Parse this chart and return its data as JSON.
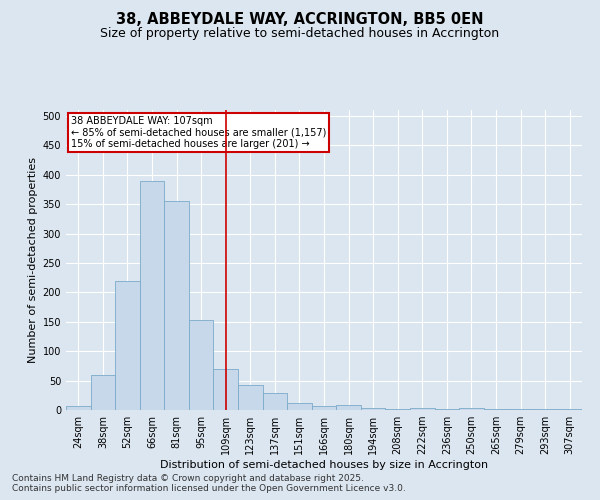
{
  "title": "38, ABBEYDALE WAY, ACCRINGTON, BB5 0EN",
  "subtitle": "Size of property relative to semi-detached houses in Accrington",
  "xlabel": "Distribution of semi-detached houses by size in Accrington",
  "ylabel": "Number of semi-detached properties",
  "categories": [
    "24sqm",
    "38sqm",
    "52sqm",
    "66sqm",
    "81sqm",
    "95sqm",
    "109sqm",
    "123sqm",
    "137sqm",
    "151sqm",
    "166sqm",
    "180sqm",
    "194sqm",
    "208sqm",
    "222sqm",
    "236sqm",
    "250sqm",
    "265sqm",
    "279sqm",
    "293sqm",
    "307sqm"
  ],
  "values": [
    7,
    59,
    220,
    390,
    355,
    153,
    70,
    42,
    29,
    12,
    7,
    9,
    4,
    2,
    4,
    2,
    4,
    1,
    1,
    1,
    1
  ],
  "bar_color": "#c8d8eb",
  "bar_edge_color": "#7aaac8",
  "vline_color": "#cc0000",
  "vline_x": 6.0,
  "annotation_line1": "38 ABBEYDALE WAY: 107sqm",
  "annotation_line2": "← 85% of semi-detached houses are smaller (1,157)",
  "annotation_line3": "15% of semi-detached houses are larger (201) →",
  "annotation_box_color": "#ffffff",
  "annotation_box_edge_color": "#cc0000",
  "ylim": [
    0,
    510
  ],
  "yticks": [
    0,
    50,
    100,
    150,
    200,
    250,
    300,
    350,
    400,
    450,
    500
  ],
  "bg_color": "#dce6f0",
  "plot_bg_color": "#dce6f0",
  "grid_color": "#ffffff",
  "footer1": "Contains HM Land Registry data © Crown copyright and database right 2025.",
  "footer2": "Contains public sector information licensed under the Open Government Licence v3.0.",
  "title_fontsize": 10.5,
  "subtitle_fontsize": 9,
  "axis_label_fontsize": 8,
  "tick_fontsize": 7,
  "annotation_fontsize": 7,
  "footer_fontsize": 6.5
}
